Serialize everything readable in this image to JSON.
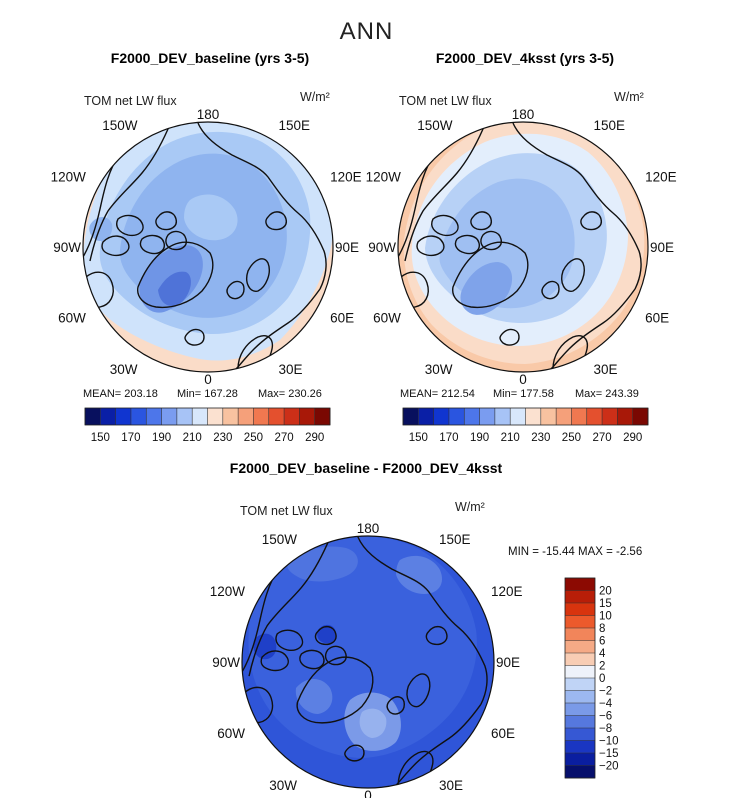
{
  "figure": {
    "season": "ANN",
    "units": "W/m²"
  },
  "chart_data": [
    {
      "type": "heatmap",
      "title": "F2000_DEV_baseline (yrs 3-5)",
      "variable": "TOM net LW flux",
      "projection": "north polar stereographic",
      "stats": {
        "mean_text": "MEAN= 203.18",
        "min_text": "Min= 167.28",
        "max_text": "Max= 230.26",
        "mean": 203.18,
        "min": 167.28,
        "max": 230.26
      },
      "colorbar_ticks": [
        "150",
        "170",
        "190",
        "210",
        "230",
        "250",
        "270",
        "290"
      ],
      "colorbar_levels": [
        140,
        150,
        160,
        170,
        180,
        190,
        200,
        210,
        220,
        230,
        240,
        250,
        260,
        270,
        280,
        290,
        300
      ],
      "longitude_labels": [
        "180",
        "150E",
        "120E",
        "90E",
        "60E",
        "30E",
        "0",
        "30W",
        "60W",
        "90W",
        "120W",
        "150W"
      ]
    },
    {
      "type": "heatmap",
      "title": "F2000_DEV_4ksst (yrs 3-5)",
      "variable": "TOM net LW flux",
      "projection": "north polar stereographic",
      "stats": {
        "mean_text": "MEAN= 212.54",
        "min_text": "Min= 177.58",
        "max_text": "Max= 243.39",
        "mean": 212.54,
        "min": 177.58,
        "max": 243.39
      },
      "colorbar_ticks": [
        "150",
        "170",
        "190",
        "210",
        "230",
        "250",
        "270",
        "290"
      ],
      "colorbar_levels": [
        140,
        150,
        160,
        170,
        180,
        190,
        200,
        210,
        220,
        230,
        240,
        250,
        260,
        270,
        280,
        290,
        300
      ],
      "longitude_labels": [
        "180",
        "150E",
        "120E",
        "90E",
        "60E",
        "30E",
        "0",
        "30W",
        "60W",
        "90W",
        "120W",
        "150W"
      ]
    },
    {
      "type": "heatmap",
      "title": "F2000_DEV_baseline - F2000_DEV_4ksst",
      "variable": "TOM net LW flux",
      "projection": "north polar stereographic",
      "stats": {
        "min_max_text": "MIN = -15.44 MAX = -2.56",
        "min": -15.44,
        "max": -2.56
      },
      "colorbar_ticks": [
        "20",
        "15",
        "10",
        "8",
        "6",
        "4",
        "2",
        "0",
        "−2",
        "−4",
        "−6",
        "−8",
        "−10",
        "−15",
        "−20"
      ],
      "longitude_labels": [
        "180",
        "150E",
        "120E",
        "90E",
        "60E",
        "30E",
        "0",
        "30W",
        "60W",
        "90W",
        "120W",
        "150W"
      ]
    }
  ]
}
